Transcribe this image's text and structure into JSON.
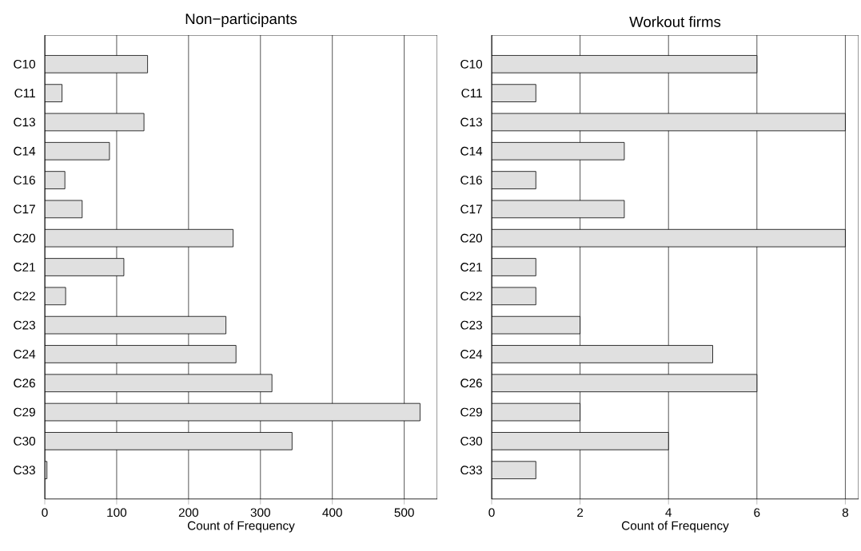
{
  "chart_data": [
    {
      "type": "bar",
      "orientation": "horizontal",
      "title": "Non−participants",
      "xlabel": "Count of Frequency",
      "categories": [
        "C10",
        "C11",
        "C13",
        "C14",
        "C16",
        "C17",
        "C20",
        "C21",
        "C22",
        "C23",
        "C24",
        "C26",
        "C29",
        "C30",
        "C33"
      ],
      "values": [
        143,
        24,
        138,
        90,
        28,
        52,
        262,
        110,
        29,
        252,
        266,
        316,
        522,
        344,
        3
      ],
      "color": "#e0e0e0",
      "xlim": [
        0,
        546
      ],
      "xticks": [
        0,
        100,
        200,
        300,
        400,
        500
      ],
      "grid": "x"
    },
    {
      "type": "bar",
      "orientation": "horizontal",
      "title": "Workout firms",
      "xlabel": "Count of Frequency",
      "categories": [
        "C10",
        "C11",
        "C13",
        "C14",
        "C16",
        "C17",
        "C20",
        "C21",
        "C22",
        "C23",
        "C24",
        "C26",
        "C29",
        "C30",
        "C33"
      ],
      "values": [
        6,
        1,
        8,
        3,
        1,
        3,
        8,
        1,
        1,
        2,
        5,
        6,
        2,
        4,
        1
      ],
      "color": "#e0e0e0",
      "xlim": [
        0,
        8.3
      ],
      "xticks": [
        0,
        2,
        4,
        6,
        8
      ],
      "grid": "x"
    }
  ]
}
